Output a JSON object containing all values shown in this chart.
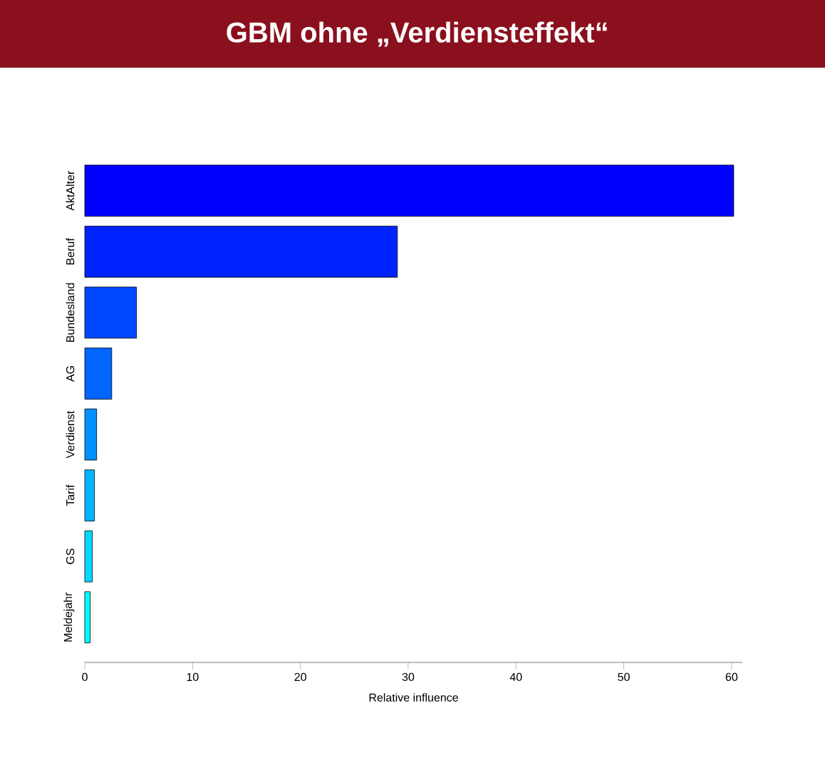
{
  "chart_data": {
    "type": "bar",
    "orientation": "horizontal",
    "title": "GBM ohne „Verdiensteffekt“",
    "xlabel": "Relative influence",
    "categories": [
      "AktAlter",
      "Beruf",
      "Bundesland",
      "AG",
      "Verdienst",
      "Tarif",
      "GS",
      "Meldejahr"
    ],
    "values": [
      60.2,
      29.0,
      4.8,
      2.5,
      1.1,
      0.9,
      0.7,
      0.5
    ],
    "colors": [
      "#0000ff",
      "#0022ff",
      "#0048ff",
      "#0066ff",
      "#0090ff",
      "#00b4ff",
      "#00d8ff",
      "#00ffff"
    ],
    "xlim": [
      0,
      61
    ],
    "xticks": [
      0,
      10,
      20,
      30,
      40,
      50,
      60
    ],
    "grid": false
  }
}
